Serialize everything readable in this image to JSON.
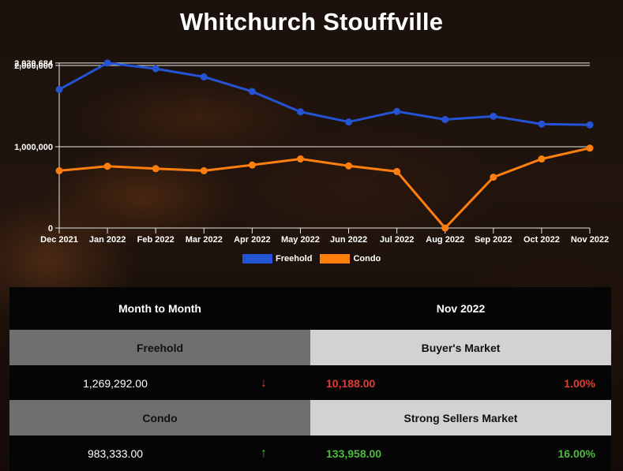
{
  "title": "Whitchurch Stouffville",
  "chart_data": {
    "type": "line",
    "title": "Whitchurch Stouffville",
    "xlabel": "",
    "ylabel": "",
    "categories": [
      "Dec 2021",
      "Jan 2022",
      "Feb 2022",
      "Mar 2022",
      "Apr 2022",
      "May 2022",
      "Jun 2022",
      "Jul 2022",
      "Aug 2022",
      "Sep 2022",
      "Oct 2022",
      "Nov 2022"
    ],
    "series": [
      {
        "name": "Freehold",
        "color": "#2453d4",
        "values": [
          1705000,
          2030684,
          1960000,
          1860000,
          1680000,
          1430000,
          1305000,
          1435000,
          1335000,
          1375000,
          1279480,
          1269292
        ]
      },
      {
        "name": "Condo",
        "color": "#ff7f0e",
        "values": [
          705000,
          760000,
          730000,
          705000,
          775000,
          850000,
          765000,
          695000,
          0,
          625000,
          849375,
          983333
        ]
      }
    ],
    "y_ticks": [
      "0",
      "1,000,000",
      "2,000,000",
      "2,030,684"
    ],
    "ylim": [
      0,
      2030684
    ],
    "grid": true,
    "legend_position": "bottom"
  },
  "legend": [
    {
      "label": "Freehold",
      "color": "#2453d4"
    },
    {
      "label": "Condo",
      "color": "#ff7f0e"
    }
  ],
  "table": {
    "header_left": "Month to Month",
    "header_right": "Nov 2022",
    "rows": [
      {
        "type": "Freehold",
        "market": "Buyer's Market",
        "price": "1,269,292.00",
        "direction": "down",
        "arrow": "↓",
        "change": "10,188.00",
        "percent": "1.00%"
      },
      {
        "type": "Condo",
        "market": "Strong Sellers Market",
        "price": "983,333.00",
        "direction": "up",
        "arrow": "↑",
        "change": "133,958.00",
        "percent": "16.00%"
      }
    ]
  },
  "colors": {
    "down": "#e23c35",
    "up": "#4cbb3e",
    "group_left_bg": "#6f6f6f",
    "group_right_bg": "#d2d2d2"
  }
}
